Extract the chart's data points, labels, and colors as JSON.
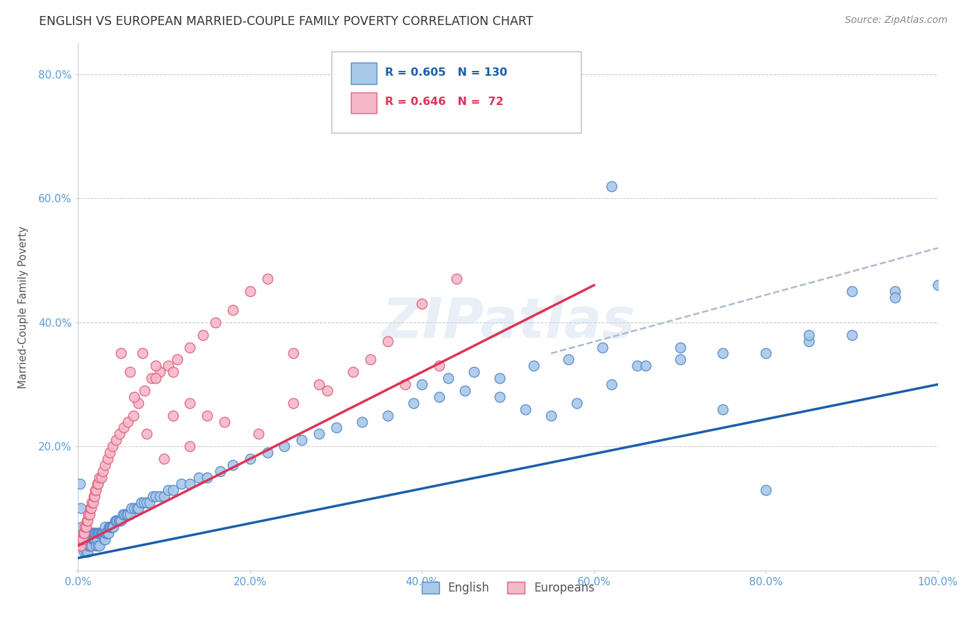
{
  "title": "ENGLISH VS EUROPEAN MARRIED-COUPLE FAMILY POVERTY CORRELATION CHART",
  "source": "Source: ZipAtlas.com",
  "ylabel": "Married-Couple Family Poverty",
  "xlabel": "",
  "xlim": [
    0,
    1.0
  ],
  "ylim": [
    0,
    0.85
  ],
  "xticks": [
    0.0,
    0.2,
    0.4,
    0.6,
    0.8,
    1.0
  ],
  "xticklabels": [
    "0.0%",
    "20.0%",
    "40.0%",
    "60.0%",
    "80.0%",
    "100.0%"
  ],
  "ytick_vals": [
    0.0,
    0.2,
    0.4,
    0.6,
    0.8
  ],
  "ytick_labels": [
    "",
    "20.0%",
    "40.0%",
    "60.0%",
    "80.0%"
  ],
  "english_color": "#a8c8e8",
  "european_color": "#f5b8c8",
  "english_edge": "#5588cc",
  "european_edge": "#e06080",
  "trend_english_color": "#1a5faa",
  "trend_european_color": "#dd3355",
  "trend_dashed_color": "#aabbcc",
  "R_english": 0.605,
  "N_english": 130,
  "R_european": 0.646,
  "N_european": 72,
  "legend_english": "English",
  "legend_european": "Europeans",
  "watermark": "ZIPatlas",
  "background_color": "#ffffff",
  "grid_color": "#cccccc",
  "title_color": "#333333",
  "axis_label_color": "#555555",
  "tick_color": "#5b9bd5",
  "english_x": [
    0.002,
    0.003,
    0.004,
    0.005,
    0.005,
    0.006,
    0.007,
    0.007,
    0.008,
    0.009,
    0.009,
    0.01,
    0.01,
    0.011,
    0.011,
    0.012,
    0.012,
    0.013,
    0.013,
    0.014,
    0.014,
    0.015,
    0.015,
    0.016,
    0.016,
    0.017,
    0.017,
    0.018,
    0.018,
    0.019,
    0.019,
    0.02,
    0.02,
    0.021,
    0.021,
    0.022,
    0.022,
    0.023,
    0.023,
    0.024,
    0.025,
    0.025,
    0.026,
    0.027,
    0.028,
    0.029,
    0.03,
    0.03,
    0.031,
    0.031,
    0.032,
    0.033,
    0.034,
    0.035,
    0.036,
    0.037,
    0.038,
    0.039,
    0.04,
    0.041,
    0.043,
    0.044,
    0.045,
    0.047,
    0.048,
    0.05,
    0.052,
    0.054,
    0.056,
    0.058,
    0.06,
    0.062,
    0.065,
    0.068,
    0.07,
    0.073,
    0.076,
    0.08,
    0.083,
    0.087,
    0.09,
    0.095,
    0.1,
    0.105,
    0.11,
    0.12,
    0.13,
    0.14,
    0.15,
    0.165,
    0.18,
    0.2,
    0.22,
    0.24,
    0.26,
    0.28,
    0.3,
    0.33,
    0.36,
    0.39,
    0.42,
    0.45,
    0.49,
    0.53,
    0.57,
    0.61,
    0.65,
    0.7,
    0.75,
    0.8,
    0.85,
    0.9,
    0.95,
    1.0,
    0.4,
    0.43,
    0.46,
    0.49,
    0.52,
    0.55,
    0.58,
    0.62,
    0.66,
    0.7,
    0.75,
    0.8,
    0.85,
    0.9,
    0.95,
    0.62
  ],
  "english_y": [
    0.14,
    0.1,
    0.07,
    0.05,
    0.04,
    0.05,
    0.04,
    0.03,
    0.05,
    0.04,
    0.03,
    0.06,
    0.04,
    0.05,
    0.03,
    0.05,
    0.04,
    0.05,
    0.04,
    0.05,
    0.04,
    0.06,
    0.05,
    0.06,
    0.04,
    0.06,
    0.05,
    0.06,
    0.05,
    0.06,
    0.05,
    0.06,
    0.05,
    0.06,
    0.04,
    0.06,
    0.05,
    0.06,
    0.04,
    0.06,
    0.06,
    0.04,
    0.06,
    0.06,
    0.06,
    0.06,
    0.06,
    0.05,
    0.07,
    0.05,
    0.06,
    0.06,
    0.06,
    0.06,
    0.07,
    0.07,
    0.07,
    0.07,
    0.07,
    0.07,
    0.08,
    0.08,
    0.08,
    0.08,
    0.08,
    0.08,
    0.09,
    0.09,
    0.09,
    0.09,
    0.09,
    0.1,
    0.1,
    0.1,
    0.1,
    0.11,
    0.11,
    0.11,
    0.11,
    0.12,
    0.12,
    0.12,
    0.12,
    0.13,
    0.13,
    0.14,
    0.14,
    0.15,
    0.15,
    0.16,
    0.17,
    0.18,
    0.19,
    0.2,
    0.21,
    0.22,
    0.23,
    0.24,
    0.25,
    0.27,
    0.28,
    0.29,
    0.31,
    0.33,
    0.34,
    0.36,
    0.33,
    0.34,
    0.26,
    0.35,
    0.37,
    0.38,
    0.45,
    0.46,
    0.3,
    0.31,
    0.32,
    0.28,
    0.26,
    0.25,
    0.27,
    0.3,
    0.33,
    0.36,
    0.35,
    0.13,
    0.38,
    0.45,
    0.44,
    0.62
  ],
  "european_x": [
    0.002,
    0.003,
    0.004,
    0.005,
    0.006,
    0.007,
    0.008,
    0.009,
    0.01,
    0.011,
    0.012,
    0.013,
    0.014,
    0.015,
    0.016,
    0.017,
    0.018,
    0.019,
    0.02,
    0.021,
    0.022,
    0.023,
    0.025,
    0.027,
    0.029,
    0.031,
    0.034,
    0.037,
    0.04,
    0.044,
    0.048,
    0.053,
    0.058,
    0.064,
    0.07,
    0.077,
    0.085,
    0.095,
    0.105,
    0.115,
    0.13,
    0.145,
    0.16,
    0.18,
    0.2,
    0.22,
    0.25,
    0.28,
    0.32,
    0.36,
    0.4,
    0.44,
    0.34,
    0.38,
    0.42,
    0.09,
    0.11,
    0.13,
    0.15,
    0.17,
    0.21,
    0.25,
    0.29,
    0.06,
    0.075,
    0.09,
    0.11,
    0.13,
    0.05,
    0.065,
    0.08,
    0.1
  ],
  "european_y": [
    0.04,
    0.04,
    0.05,
    0.05,
    0.06,
    0.06,
    0.07,
    0.07,
    0.08,
    0.08,
    0.09,
    0.09,
    0.1,
    0.1,
    0.11,
    0.11,
    0.12,
    0.12,
    0.13,
    0.13,
    0.14,
    0.14,
    0.15,
    0.15,
    0.16,
    0.17,
    0.18,
    0.19,
    0.2,
    0.21,
    0.22,
    0.23,
    0.24,
    0.25,
    0.27,
    0.29,
    0.31,
    0.32,
    0.33,
    0.34,
    0.36,
    0.38,
    0.4,
    0.42,
    0.45,
    0.47,
    0.35,
    0.3,
    0.32,
    0.37,
    0.43,
    0.47,
    0.34,
    0.3,
    0.33,
    0.33,
    0.32,
    0.27,
    0.25,
    0.24,
    0.22,
    0.27,
    0.29,
    0.32,
    0.35,
    0.31,
    0.25,
    0.2,
    0.35,
    0.28,
    0.22,
    0.18
  ],
  "eng_trend_x0": 0.0,
  "eng_trend_y0": 0.02,
  "eng_trend_x1": 1.0,
  "eng_trend_y1": 0.3,
  "eur_trend_x0": 0.0,
  "eur_trend_y0": 0.04,
  "eur_trend_x1": 0.6,
  "eur_trend_y1": 0.46,
  "dash_trend_x0": 0.55,
  "dash_trend_y0": 0.35,
  "dash_trend_x1": 1.0,
  "dash_trend_y1": 0.52
}
